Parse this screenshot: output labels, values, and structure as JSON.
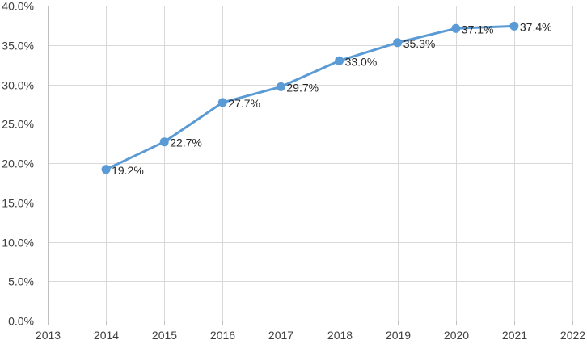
{
  "chart_data": {
    "type": "scatter",
    "title": "",
    "xlabel": "",
    "ylabel": "",
    "xlim": [
      2013,
      2022
    ],
    "ylim": [
      0,
      40
    ],
    "x_ticks": [
      2013,
      2014,
      2015,
      2016,
      2017,
      2018,
      2019,
      2020,
      2021,
      2022
    ],
    "y_ticks": [
      0,
      5,
      10,
      15,
      20,
      25,
      30,
      35,
      40
    ],
    "y_tick_labels": [
      "0.0%",
      "5.0%",
      "10.0%",
      "15.0%",
      "20.0%",
      "25.0%",
      "30.0%",
      "35.0%",
      "40.0%"
    ],
    "grid": true,
    "legend": "none",
    "series": [
      {
        "x": [
          2014,
          2015,
          2016,
          2017,
          2018,
          2019,
          2020,
          2021
        ],
        "values": [
          19.2,
          22.7,
          27.7,
          29.7,
          33.0,
          35.3,
          37.1,
          37.4
        ],
        "labels": [
          "19.2%",
          "22.7%",
          "27.7%",
          "29.7%",
          "33.0%",
          "35.3%",
          "37.1%",
          "37.4%"
        ],
        "color": "#5b9bd5",
        "style": "lines+markers"
      }
    ]
  }
}
